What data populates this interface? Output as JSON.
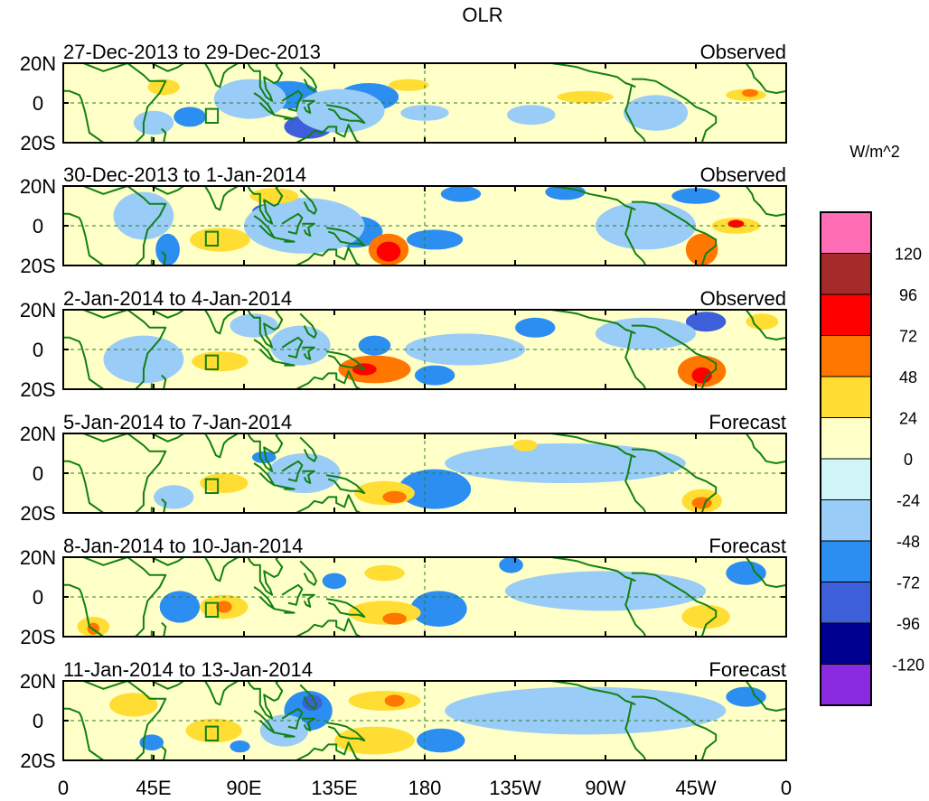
{
  "chart_data": {
    "type": "heatmap",
    "title": "OLR",
    "variable": "Outgoing Longwave Radiation anomaly",
    "units": "W/m^2",
    "x_ticks": [
      "0",
      "45E",
      "90E",
      "135E",
      "180",
      "135W",
      "90W",
      "45W",
      "0"
    ],
    "x_values_deg": [
      0,
      45,
      90,
      135,
      180,
      225,
      270,
      315,
      360
    ],
    "y_ticks": [
      "20N",
      "0",
      "20S"
    ],
    "y_values_deg": [
      20,
      0,
      -20
    ],
    "xlim": [
      0,
      360
    ],
    "ylim": [
      -20,
      20
    ],
    "colorbar": {
      "label": "W/m^2",
      "levels": [
        "120",
        "96",
        "72",
        "48",
        "24",
        "0",
        "-24",
        "-48",
        "-72",
        "-96",
        "-120"
      ],
      "colors": [
        "#ff6eb4",
        "#a52a2a",
        "#ff0000",
        "#ff7700",
        "#ffdd33",
        "#ffffc8",
        "#d0f4f8",
        "#99ccf7",
        "#2b8ef0",
        "#3d5fd9",
        "#000090",
        "#8a2be2"
      ]
    },
    "panels": [
      {
        "period": "27-Dec-2013 to 29-Dec-2013",
        "status": "Observed",
        "blobs": [
          {
            "lon": 125,
            "lat": -14,
            "rx": 6,
            "ry": 3,
            "value": -120
          },
          {
            "lon": 122,
            "lat": -12,
            "rx": 12,
            "ry": 6,
            "value": -72
          },
          {
            "lon": 112,
            "lat": 4,
            "rx": 15,
            "ry": 7,
            "value": -48
          },
          {
            "lon": 152,
            "lat": 3,
            "rx": 15,
            "ry": 7,
            "value": -48
          },
          {
            "lon": 63,
            "lat": -7,
            "rx": 8,
            "ry": 5,
            "value": -48
          },
          {
            "lon": 93,
            "lat": 2,
            "rx": 18,
            "ry": 10,
            "value": -24
          },
          {
            "lon": 138,
            "lat": -4,
            "rx": 22,
            "ry": 11,
            "value": -24
          },
          {
            "lon": 233,
            "lat": -6,
            "rx": 12,
            "ry": 5,
            "value": -24
          },
          {
            "lon": 180,
            "lat": -5,
            "rx": 12,
            "ry": 4,
            "value": -24
          },
          {
            "lon": 295,
            "lat": -5,
            "rx": 16,
            "ry": 9,
            "value": -24
          },
          {
            "lon": 45,
            "lat": -10,
            "rx": 10,
            "ry": 6,
            "value": -24
          },
          {
            "lon": 172,
            "lat": 9,
            "rx": 10,
            "ry": 3,
            "value": 24
          },
          {
            "lon": 260,
            "lat": 3,
            "rx": 14,
            "ry": 3,
            "value": 24
          },
          {
            "lon": 340,
            "lat": 4,
            "rx": 10,
            "ry": 3,
            "value": 24
          },
          {
            "lon": 342,
            "lat": 5,
            "rx": 4,
            "ry": 2,
            "value": 48
          },
          {
            "lon": 50,
            "lat": 8,
            "rx": 8,
            "ry": 4,
            "value": 24
          }
        ]
      },
      {
        "period": "30-Dec-2013 to 1-Jan-2014",
        "status": "Observed",
        "blobs": [
          {
            "lon": 52,
            "lat": -14,
            "rx": 3,
            "ry": 5,
            "value": -120
          },
          {
            "lon": 52,
            "lat": -12,
            "rx": 6,
            "ry": 8,
            "value": -48
          },
          {
            "lon": 102,
            "lat": 7,
            "rx": 8,
            "ry": 4,
            "value": -72
          },
          {
            "lon": 145,
            "lat": -3,
            "rx": 14,
            "ry": 8,
            "value": -48
          },
          {
            "lon": 185,
            "lat": -7,
            "rx": 14,
            "ry": 5,
            "value": -48
          },
          {
            "lon": 198,
            "lat": 16,
            "rx": 10,
            "ry": 4,
            "value": -48
          },
          {
            "lon": 250,
            "lat": 17,
            "rx": 10,
            "ry": 4,
            "value": -48
          },
          {
            "lon": 315,
            "lat": 15,
            "rx": 12,
            "ry": 4,
            "value": -48
          },
          {
            "lon": 120,
            "lat": 0,
            "rx": 30,
            "ry": 14,
            "value": -24
          },
          {
            "lon": 290,
            "lat": 0,
            "rx": 25,
            "ry": 12,
            "value": -24
          },
          {
            "lon": 40,
            "lat": 5,
            "rx": 15,
            "ry": 12,
            "value": -24
          },
          {
            "lon": 162,
            "lat": -12,
            "rx": 10,
            "ry": 8,
            "value": 48
          },
          {
            "lon": 162,
            "lat": -13,
            "rx": 6,
            "ry": 5,
            "value": 72
          },
          {
            "lon": 78,
            "lat": -7,
            "rx": 15,
            "ry": 6,
            "value": 24
          },
          {
            "lon": 318,
            "lat": -12,
            "rx": 8,
            "ry": 8,
            "value": 48
          },
          {
            "lon": 335,
            "lat": 0,
            "rx": 12,
            "ry": 4,
            "value": 24
          },
          {
            "lon": 335,
            "lat": 1,
            "rx": 4,
            "ry": 2,
            "value": 72
          },
          {
            "lon": 105,
            "lat": 15,
            "rx": 12,
            "ry": 4,
            "value": 24
          }
        ]
      },
      {
        "period": "2-Jan-2014 to 4-Jan-2014",
        "status": "Observed",
        "blobs": [
          {
            "lon": 155,
            "lat": -10,
            "rx": 18,
            "ry": 7,
            "value": 48
          },
          {
            "lon": 150,
            "lat": -10,
            "rx": 6,
            "ry": 3,
            "value": 72
          },
          {
            "lon": 318,
            "lat": -11,
            "rx": 12,
            "ry": 8,
            "value": 48
          },
          {
            "lon": 318,
            "lat": -13,
            "rx": 5,
            "ry": 4,
            "value": 72
          },
          {
            "lon": 235,
            "lat": 11,
            "rx": 10,
            "ry": 5,
            "value": -48
          },
          {
            "lon": 320,
            "lat": 14,
            "rx": 10,
            "ry": 5,
            "value": -72
          },
          {
            "lon": 185,
            "lat": -13,
            "rx": 10,
            "ry": 5,
            "value": -48
          },
          {
            "lon": 155,
            "lat": 2,
            "rx": 8,
            "ry": 5,
            "value": -48
          },
          {
            "lon": 118,
            "lat": 2,
            "rx": 15,
            "ry": 10,
            "value": -24
          },
          {
            "lon": 95,
            "lat": 12,
            "rx": 12,
            "ry": 6,
            "value": -24
          },
          {
            "lon": 40,
            "lat": -5,
            "rx": 20,
            "ry": 12,
            "value": -24
          },
          {
            "lon": 290,
            "lat": 8,
            "rx": 25,
            "ry": 8,
            "value": -24
          },
          {
            "lon": 200,
            "lat": 0,
            "rx": 30,
            "ry": 8,
            "value": -24
          },
          {
            "lon": 78,
            "lat": -6,
            "rx": 14,
            "ry": 5,
            "value": 24
          },
          {
            "lon": 348,
            "lat": 14,
            "rx": 8,
            "ry": 4,
            "value": 24
          }
        ]
      },
      {
        "period": "5-Jan-2014 to 7-Jan-2014",
        "status": "Forecast",
        "blobs": [
          {
            "lon": 183,
            "lat": -8,
            "rx": 10,
            "ry": 6,
            "value": -96
          },
          {
            "lon": 185,
            "lat": -8,
            "rx": 18,
            "ry": 10,
            "value": -48
          },
          {
            "lon": 160,
            "lat": -10,
            "rx": 15,
            "ry": 6,
            "value": 24
          },
          {
            "lon": 165,
            "lat": -12,
            "rx": 6,
            "ry": 3,
            "value": 48
          },
          {
            "lon": 318,
            "lat": -14,
            "rx": 10,
            "ry": 6,
            "value": 24
          },
          {
            "lon": 318,
            "lat": -15,
            "rx": 5,
            "ry": 3,
            "value": 48
          },
          {
            "lon": 80,
            "lat": -5,
            "rx": 12,
            "ry": 5,
            "value": 24
          },
          {
            "lon": 120,
            "lat": 0,
            "rx": 18,
            "ry": 10,
            "value": -24
          },
          {
            "lon": 100,
            "lat": 8,
            "rx": 6,
            "ry": 3,
            "value": -48
          },
          {
            "lon": 250,
            "lat": 5,
            "rx": 60,
            "ry": 10,
            "value": -24
          },
          {
            "lon": 230,
            "lat": 14,
            "rx": 6,
            "ry": 3,
            "value": 24
          },
          {
            "lon": 55,
            "lat": -12,
            "rx": 10,
            "ry": 6,
            "value": -24
          }
        ]
      },
      {
        "period": "8-Jan-2014 to 10-Jan-2014",
        "status": "Forecast",
        "blobs": [
          {
            "lon": 189,
            "lat": -8,
            "rx": 4,
            "ry": 4,
            "value": -120
          },
          {
            "lon": 188,
            "lat": -7,
            "rx": 8,
            "ry": 6,
            "value": -72
          },
          {
            "lon": 187,
            "lat": -6,
            "rx": 14,
            "ry": 9,
            "value": -48
          },
          {
            "lon": 58,
            "lat": -5,
            "rx": 6,
            "ry": 5,
            "value": -72
          },
          {
            "lon": 58,
            "lat": -5,
            "rx": 10,
            "ry": 8,
            "value": -48
          },
          {
            "lon": 135,
            "lat": 8,
            "rx": 6,
            "ry": 4,
            "value": -48
          },
          {
            "lon": 223,
            "lat": 16,
            "rx": 6,
            "ry": 4,
            "value": -48
          },
          {
            "lon": 340,
            "lat": 12,
            "rx": 10,
            "ry": 6,
            "value": -48
          },
          {
            "lon": 80,
            "lat": -5,
            "rx": 12,
            "ry": 6,
            "value": 24
          },
          {
            "lon": 80,
            "lat": -5,
            "rx": 4,
            "ry": 3,
            "value": 48
          },
          {
            "lon": 160,
            "lat": -8,
            "rx": 18,
            "ry": 6,
            "value": 24
          },
          {
            "lon": 165,
            "lat": -11,
            "rx": 6,
            "ry": 3,
            "value": 48
          },
          {
            "lon": 15,
            "lat": -15,
            "rx": 8,
            "ry": 5,
            "value": 24
          },
          {
            "lon": 15,
            "lat": -16,
            "rx": 3,
            "ry": 3,
            "value": 48
          },
          {
            "lon": 160,
            "lat": 12,
            "rx": 10,
            "ry": 4,
            "value": 24
          },
          {
            "lon": 270,
            "lat": 3,
            "rx": 50,
            "ry": 10,
            "value": -24
          },
          {
            "lon": 320,
            "lat": -10,
            "rx": 12,
            "ry": 6,
            "value": 24
          }
        ]
      },
      {
        "period": "11-Jan-2014 to 13-Jan-2014",
        "status": "Forecast",
        "blobs": [
          {
            "lon": 122,
            "lat": 5,
            "rx": 12,
            "ry": 10,
            "value": -48
          },
          {
            "lon": 124,
            "lat": 9,
            "rx": 5,
            "ry": 4,
            "value": -72
          },
          {
            "lon": 188,
            "lat": -10,
            "rx": 12,
            "ry": 6,
            "value": -48
          },
          {
            "lon": 340,
            "lat": 12,
            "rx": 10,
            "ry": 5,
            "value": -48
          },
          {
            "lon": 44,
            "lat": -11,
            "rx": 6,
            "ry": 4,
            "value": -48
          },
          {
            "lon": 88,
            "lat": -13,
            "rx": 5,
            "ry": 3,
            "value": -48
          },
          {
            "lon": 160,
            "lat": 10,
            "rx": 18,
            "ry": 5,
            "value": 24
          },
          {
            "lon": 165,
            "lat": 10,
            "rx": 5,
            "ry": 3,
            "value": 48
          },
          {
            "lon": 75,
            "lat": -5,
            "rx": 14,
            "ry": 6,
            "value": 24
          },
          {
            "lon": 155,
            "lat": -10,
            "rx": 20,
            "ry": 7,
            "value": 24
          },
          {
            "lon": 260,
            "lat": 5,
            "rx": 70,
            "ry": 12,
            "value": -24
          },
          {
            "lon": 110,
            "lat": -5,
            "rx": 12,
            "ry": 8,
            "value": -24
          },
          {
            "lon": 35,
            "lat": 8,
            "rx": 12,
            "ry": 6,
            "value": 24
          }
        ]
      }
    ]
  }
}
